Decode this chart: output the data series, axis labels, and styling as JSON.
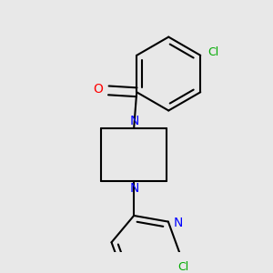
{
  "bg_color": "#e8e8e8",
  "line_color": "#000000",
  "bond_width": 1.5,
  "atom_colors": {
    "N": "#0000ff",
    "O": "#ff0000",
    "Cl": "#00aa00"
  },
  "font_size_atom": 10,
  "font_size_cl": 9,
  "figsize": [
    3.0,
    3.0
  ],
  "dpi": 100
}
